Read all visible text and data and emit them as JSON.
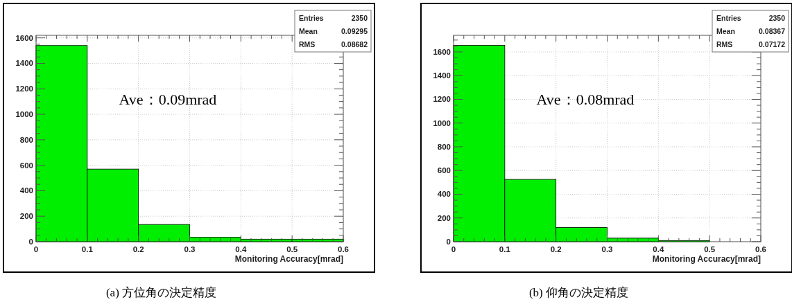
{
  "chart_data": [
    {
      "type": "histogram",
      "title": "(a) 方位角の決定精度",
      "xlabel": "Monitoring Accuracy[mrad]",
      "bins": [
        0,
        0.1,
        0.2,
        0.3,
        0.4,
        0.5,
        0.6
      ],
      "values": [
        1540,
        570,
        135,
        35,
        20,
        20
      ],
      "color": "#00ee00",
      "xlim": [
        0,
        0.6
      ],
      "ylim": [
        0,
        1620
      ],
      "xticks": [
        0,
        0.1,
        0.2,
        0.3,
        0.4,
        0.5,
        0.6
      ],
      "yticks": [
        0,
        200,
        400,
        600,
        800,
        1000,
        1200,
        1400,
        1600
      ],
      "grid": true,
      "annotations": [
        "Entries",
        "2350",
        "Mean",
        "0.09295",
        "RMS",
        "0.08682",
        "Ave：0.09mrad"
      ]
    },
    {
      "type": "histogram",
      "title": "(b) 仰角の決定精度",
      "xlabel": "Monitoring Accuracy[mrad]",
      "bins": [
        0,
        0.1,
        0.2,
        0.3,
        0.4,
        0.5,
        0.6
      ],
      "values": [
        1655,
        525,
        120,
        30,
        10,
        0
      ],
      "color": "#00ee00",
      "xlim": [
        0,
        0.6
      ],
      "ylim": [
        0,
        1740
      ],
      "xticks": [
        0,
        0.1,
        0.2,
        0.3,
        0.4,
        0.5,
        0.6
      ],
      "yticks": [
        0,
        200,
        400,
        600,
        800,
        1000,
        1200,
        1400,
        1600
      ],
      "grid": true,
      "annotations": [
        "Entries",
        "2350",
        "Mean",
        "0.08367",
        "RMS",
        "0.07172",
        "Ave：0.08mrad"
      ]
    }
  ]
}
